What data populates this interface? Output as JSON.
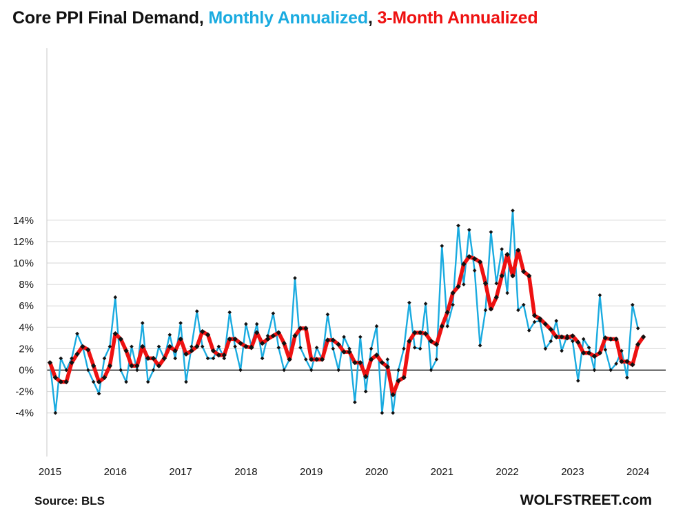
{
  "title": {
    "main": "Core PPI Final Demand,",
    "monthly": "Monthly Annualized",
    "separator": ",",
    "three_month": "3-Month Annualized"
  },
  "footer": {
    "source": "Source: BLS",
    "brand": "WOLFSTREET.com"
  },
  "colors": {
    "monthly": "#1aabe0",
    "three_month": "#ee1111",
    "markers": "#111111",
    "grid": "#d6d6d6"
  },
  "chart_data": {
    "type": "line",
    "title": "Core PPI Final Demand, Monthly Annualized, 3-Month Annualized",
    "xlabel": "",
    "ylabel": "",
    "x_start": "2015-01",
    "x_tick_labels": [
      "2015",
      "2016",
      "2017",
      "2018",
      "2019",
      "2020",
      "2021",
      "2022",
      "2023",
      "2024"
    ],
    "y_tick_labels": [
      "-4%",
      "-2%",
      "0%",
      "2%",
      "4%",
      "6%",
      "8%",
      "10%",
      "12%",
      "14%"
    ],
    "ylim": [
      -4,
      15
    ],
    "xlim": [
      "2015-01",
      "2024-02"
    ],
    "grid": true,
    "legend": "title",
    "series": [
      {
        "name": "Monthly Annualized",
        "color": "#1aabe0",
        "values": [
          0.7,
          -4.0,
          1.1,
          0.0,
          1.1,
          3.4,
          2.2,
          0.0,
          -1.1,
          -2.2,
          1.1,
          2.2,
          6.8,
          0.0,
          -1.1,
          2.2,
          0.0,
          4.4,
          -1.1,
          0.0,
          2.2,
          1.1,
          3.3,
          1.1,
          4.4,
          -1.1,
          2.2,
          5.5,
          2.2,
          1.1,
          1.1,
          2.2,
          1.1,
          5.4,
          2.2,
          0.0,
          4.3,
          2.2,
          4.3,
          1.1,
          3.2,
          5.3,
          2.1,
          0.0,
          1.0,
          8.6,
          2.1,
          1.0,
          0.0,
          2.1,
          1.0,
          5.2,
          2.0,
          0.0,
          3.1,
          2.0,
          -3.0,
          3.1,
          -2.0,
          2.0,
          4.1,
          -4.0,
          1.0,
          -4.0,
          0.0,
          2.0,
          6.3,
          2.1,
          2.0,
          6.2,
          0.0,
          1.0,
          11.6,
          4.1,
          6.1,
          13.5,
          8.0,
          13.1,
          9.3,
          2.3,
          5.6,
          12.9,
          8.1,
          11.3,
          7.2,
          14.9,
          5.6,
          6.1,
          3.7,
          4.5,
          4.6,
          2.0,
          2.7,
          4.6,
          1.8,
          3.2,
          2.7,
          -1.0,
          2.9,
          2.1,
          0.0,
          7.0,
          1.9,
          0.0,
          0.6,
          1.8,
          -0.7,
          6.1,
          3.9
        ]
      },
      {
        "name": "3-Month Annualized",
        "color": "#ee1111",
        "values": [
          0.7,
          -0.7,
          -1.1,
          -1.1,
          0.7,
          1.5,
          2.2,
          1.9,
          0.4,
          -1.1,
          -0.7,
          0.4,
          3.4,
          2.9,
          1.8,
          0.4,
          0.4,
          2.2,
          1.1,
          1.1,
          0.4,
          1.1,
          2.2,
          1.8,
          2.9,
          1.5,
          1.8,
          2.2,
          3.6,
          3.3,
          1.8,
          1.4,
          1.4,
          2.9,
          2.9,
          2.5,
          2.2,
          2.1,
          3.5,
          2.5,
          2.9,
          3.2,
          3.5,
          2.5,
          1.0,
          3.2,
          3.9,
          3.9,
          1.0,
          1.0,
          1.0,
          2.8,
          2.8,
          2.4,
          1.7,
          1.7,
          0.7,
          0.7,
          -0.6,
          1.0,
          1.4,
          0.7,
          0.3,
          -2.3,
          -1.0,
          -0.7,
          2.7,
          3.5,
          3.5,
          3.4,
          2.7,
          2.4,
          4.1,
          5.4,
          7.2,
          7.8,
          9.9,
          10.6,
          10.4,
          10.1,
          8.1,
          5.7,
          6.8,
          8.8,
          10.8,
          8.8,
          11.2,
          9.2,
          8.8,
          5.1,
          4.8,
          4.3,
          3.8,
          3.1,
          3.1,
          3.0,
          3.2,
          2.6,
          1.6,
          1.6,
          1.3,
          1.6,
          3.0,
          2.9,
          2.9,
          0.8,
          0.8,
          0.5,
          2.4,
          3.1
        ]
      }
    ]
  }
}
